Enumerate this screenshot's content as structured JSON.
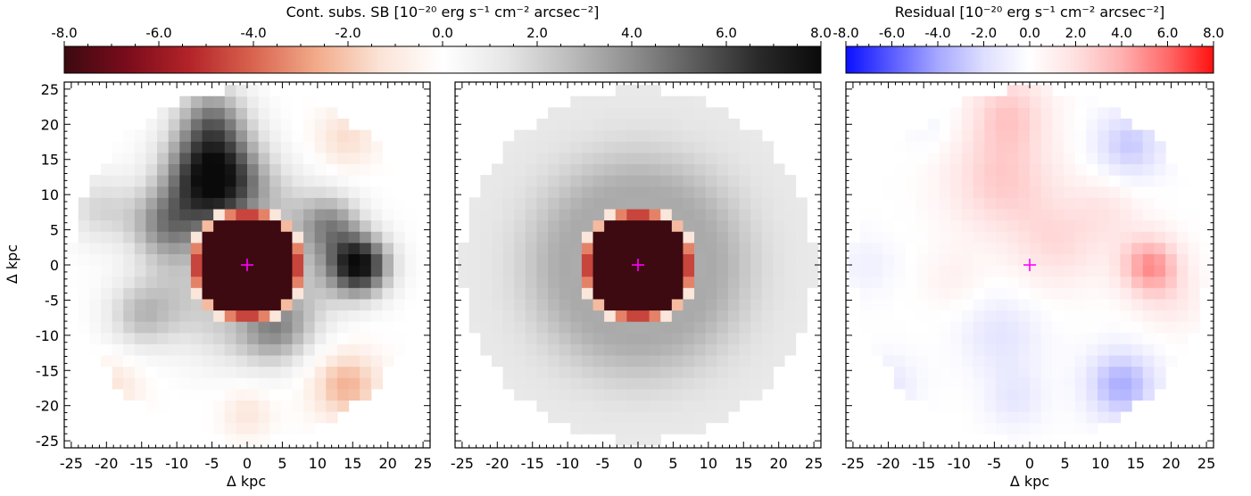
{
  "colors": {
    "sb_cmap": [
      "#3c0a10",
      "#7a0c1c",
      "#b42429",
      "#d9644f",
      "#f2ab8a",
      "#fbe3d6",
      "#ffffff",
      "#e6e6e6",
      "#bdbdbd",
      "#8f8f8f",
      "#5c5c5c",
      "#2a2a2a",
      "#0a0a0a"
    ],
    "res_cmap": [
      "#0a10ff",
      "#5a5cff",
      "#a6a8ff",
      "#dedeff",
      "#ffffff",
      "#ffe0e0",
      "#ffb0b0",
      "#ff6a6a",
      "#ff1010"
    ],
    "marker": "#ff00ff"
  },
  "colorbars": [
    {
      "label": "Cont. subs. SB [10⁻²⁰ erg s⁻¹ cm⁻² arcsec⁻²]",
      "range": [
        -8,
        8
      ],
      "ticks": [
        -8,
        -6,
        -4,
        -2,
        0,
        2,
        4,
        6,
        8
      ],
      "tick_labels": [
        "-8.0",
        "-6.0",
        "-4.0",
        "-2.0",
        "0.0",
        "2.0",
        "4.0",
        "6.0",
        "8.0"
      ],
      "cmap": "sb_cmap"
    },
    {
      "label": "Residual [10⁻²⁰ erg s⁻¹ cm⁻² arcsec⁻²]",
      "range": [
        -8,
        8
      ],
      "ticks": [
        -8,
        -6,
        -4,
        -2,
        0,
        2,
        4,
        6,
        8
      ],
      "tick_labels": [
        "-8.0",
        "-6.0",
        "-4.0",
        "-2.0",
        "0.0",
        "2.0",
        "4.0",
        "6.0",
        "8.0"
      ],
      "cmap": "res_cmap"
    }
  ],
  "chart_data": [
    {
      "type": "heatmap",
      "panel": "data",
      "xlabel": "Δ kpc",
      "ylabel": "Δ kpc",
      "xlim": [
        -26,
        26
      ],
      "ylim": [
        -26,
        26
      ],
      "xticks": [
        -25,
        -20,
        -15,
        -10,
        -5,
        0,
        5,
        10,
        15,
        20,
        25
      ],
      "yticks": [
        -25,
        -20,
        -15,
        -10,
        -5,
        0,
        5,
        10,
        15,
        20,
        25
      ],
      "grid": false,
      "aperture_radius_kpc": 25,
      "pixel_kpc": 1.6,
      "core_radius_kpc": 7.0,
      "marker": {
        "x": 0,
        "y": 0,
        "shape": "plus"
      },
      "components": [
        {
          "shape": "core",
          "x": 0,
          "y": 0,
          "amp": -20,
          "sigma": 4.2
        },
        {
          "shape": "ring",
          "x": 0,
          "y": 0,
          "r0": 8.5,
          "amp": 2.0,
          "sigma": 4.5
        },
        {
          "shape": "blob",
          "x": -5,
          "y": 13,
          "amp": 7.5,
          "sigma": 4.5
        },
        {
          "shape": "blob",
          "x": -12,
          "y": 6,
          "amp": 3.0,
          "sigma": 3.5
        },
        {
          "shape": "blob",
          "x": -5,
          "y": 21,
          "amp": 3.5,
          "sigma": 3.5
        },
        {
          "shape": "blob",
          "x": 16,
          "y": 0,
          "amp": 7.5,
          "sigma": 3.0
        },
        {
          "shape": "blob",
          "x": 12,
          "y": 6,
          "amp": 3.0,
          "sigma": 3.0
        },
        {
          "shape": "blob",
          "x": -15,
          "y": -7,
          "amp": 2.5,
          "sigma": 3.5
        },
        {
          "shape": "blob",
          "x": 4,
          "y": -9,
          "amp": 2.5,
          "sigma": 3.5
        },
        {
          "shape": "blob",
          "x": -21,
          "y": 8,
          "amp": 1.8,
          "sigma": 3.5
        },
        {
          "shape": "blob",
          "x": 14,
          "y": -17,
          "amp": -2.5,
          "sigma": 3.5
        },
        {
          "shape": "blob",
          "x": 14,
          "y": 18,
          "amp": -1.5,
          "sigma": 3.0
        },
        {
          "shape": "blob",
          "x": 0,
          "y": -21,
          "amp": -1.2,
          "sigma": 2.5
        },
        {
          "shape": "blob",
          "x": -19,
          "y": -17,
          "amp": -1.2,
          "sigma": 3.0
        }
      ]
    },
    {
      "type": "heatmap",
      "panel": "model",
      "xlabel": "",
      "ylabel": "",
      "xlim": [
        -26,
        26
      ],
      "ylim": [
        -26,
        26
      ],
      "xticks": [
        -25,
        -20,
        -15,
        -10,
        -5,
        0,
        5,
        10,
        15,
        20,
        25
      ],
      "yticks": [
        -25,
        -20,
        -15,
        -10,
        -5,
        0,
        5,
        10,
        15,
        20,
        25
      ],
      "grid": false,
      "aperture_radius_kpc": 25,
      "pixel_kpc": 1.6,
      "core_radius_kpc": 7.0,
      "marker": {
        "x": 0,
        "y": 0,
        "shape": "plus"
      },
      "components": [
        {
          "shape": "core",
          "x": 0,
          "y": 0,
          "amp": -20,
          "sigma": 4.2
        },
        {
          "shape": "ring",
          "x": 0,
          "y": 0,
          "r0": 9.5,
          "amp": 2.4,
          "sigma": 5.0
        },
        {
          "shape": "ring",
          "x": 0,
          "y": 0,
          "r0": 22,
          "amp": 1.2,
          "sigma": 14
        }
      ]
    },
    {
      "type": "heatmap",
      "panel": "residual",
      "xlabel": "Δ kpc",
      "ylabel": "",
      "xlim": [
        -26,
        26
      ],
      "ylim": [
        -26,
        26
      ],
      "xticks": [
        -25,
        -20,
        -15,
        -10,
        -5,
        0,
        5,
        10,
        15,
        20,
        25
      ],
      "yticks": [
        -25,
        -20,
        -15,
        -10,
        -5,
        0,
        5,
        10,
        15,
        20,
        25
      ],
      "grid": false,
      "aperture_radius_kpc": 25,
      "pixel_kpc": 1.6,
      "marker": {
        "x": 0,
        "y": 0,
        "shape": "plus"
      },
      "components": [
        {
          "shape": "blob",
          "x": -4,
          "y": 12,
          "amp": 2.8,
          "sigma": 5.5
        },
        {
          "shape": "blob",
          "x": -3,
          "y": 22,
          "amp": 2.6,
          "sigma": 4.0
        },
        {
          "shape": "blob",
          "x": 4,
          "y": 3,
          "amp": 2.0,
          "sigma": 4.5
        },
        {
          "shape": "blob",
          "x": 17,
          "y": 0,
          "amp": 4.8,
          "sigma": 3.0
        },
        {
          "shape": "blob",
          "x": 11,
          "y": 8,
          "amp": 1.4,
          "sigma": 3.5
        },
        {
          "shape": "blob",
          "x": 20,
          "y": -5,
          "amp": 1.2,
          "sigma": 3.5
        },
        {
          "shape": "blob",
          "x": 14,
          "y": 17,
          "amp": -2.8,
          "sigma": 3.5
        },
        {
          "shape": "blob",
          "x": 13,
          "y": -17,
          "amp": -3.8,
          "sigma": 3.5
        },
        {
          "shape": "blob",
          "x": -4,
          "y": -10,
          "amp": -1.6,
          "sigma": 4.0
        },
        {
          "shape": "blob",
          "x": -2,
          "y": -19,
          "amp": -1.4,
          "sigma": 3.0
        },
        {
          "shape": "blob",
          "x": -20,
          "y": -17,
          "amp": -1.4,
          "sigma": 3.0
        },
        {
          "shape": "blob",
          "x": -23,
          "y": 0,
          "amp": -0.9,
          "sigma": 3.0
        },
        {
          "shape": "blob",
          "x": -14,
          "y": 20,
          "amp": -0.7,
          "sigma": 3.0
        },
        {
          "shape": "blob",
          "x": -11,
          "y": -2,
          "amp": 0.9,
          "sigma": 3.0
        }
      ]
    }
  ]
}
